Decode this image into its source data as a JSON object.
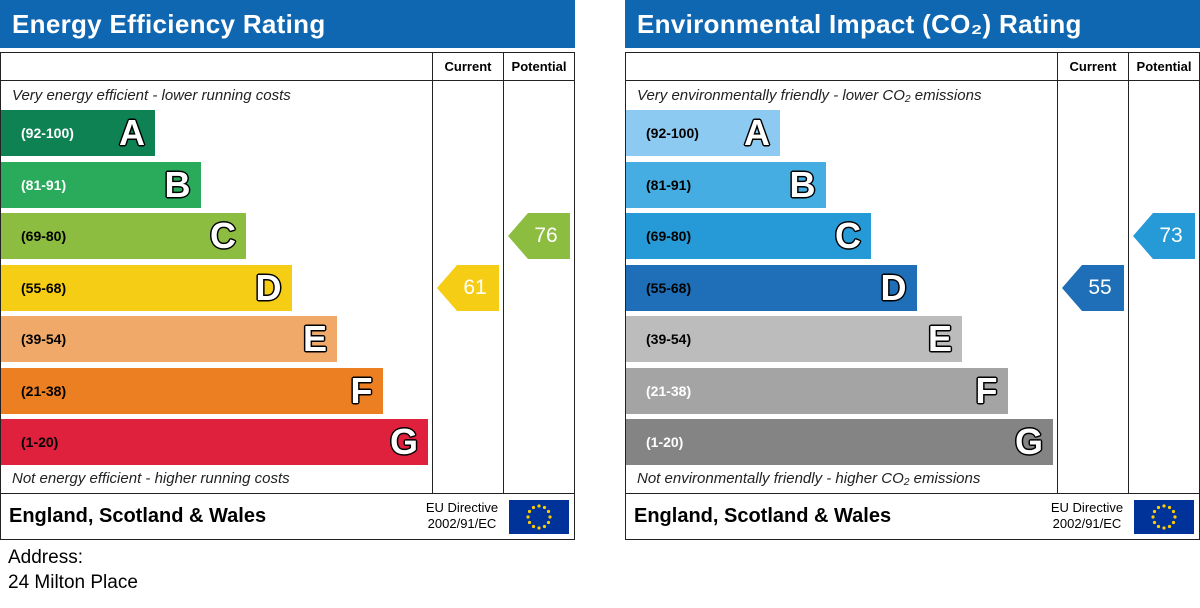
{
  "chart_data": [
    {
      "type": "bar",
      "title": "Energy Efficiency Rating",
      "columns": [
        "Current",
        "Potential"
      ],
      "top_note": "Very energy efficient - lower running costs",
      "bottom_note": "Not energy efficient - higher running costs",
      "bands": [
        {
          "letter": "A",
          "range": "(92-100)",
          "color": "#0e8253",
          "text_color": "#ffffff"
        },
        {
          "letter": "B",
          "range": "(81-91)",
          "color": "#2aab5c",
          "text_color": "#ffffff"
        },
        {
          "letter": "C",
          "range": "(69-80)",
          "color": "#8cbd40",
          "text_color": "#000000"
        },
        {
          "letter": "D",
          "range": "(55-68)",
          "color": "#f6cd15",
          "text_color": "#000000"
        },
        {
          "letter": "E",
          "range": "(39-54)",
          "color": "#f1a96a",
          "text_color": "#000000"
        },
        {
          "letter": "F",
          "range": "(21-38)",
          "color": "#ec7f22",
          "text_color": "#000000"
        },
        {
          "letter": "G",
          "range": "(1-20)",
          "color": "#e0213e",
          "text_color": "#000000"
        }
      ],
      "current": {
        "value": 61,
        "band": "D",
        "color": "#f6cd15"
      },
      "potential": {
        "value": 76,
        "band": "C",
        "color": "#8cbd40"
      },
      "footer": "England, Scotland & Wales",
      "directive": [
        "EU Directive",
        "2002/91/EC"
      ]
    },
    {
      "type": "bar",
      "title": "Environmental Impact (CO₂) Rating",
      "columns": [
        "Current",
        "Potential"
      ],
      "top_note": "Very environmentally friendly - lower CO₂ emissions",
      "bottom_note": "Not environmentally friendly - higher CO₂ emissions",
      "bands": [
        {
          "letter": "A",
          "range": "(92-100)",
          "color": "#8dcaf1",
          "text_color": "#000000"
        },
        {
          "letter": "B",
          "range": "(81-91)",
          "color": "#45ade2",
          "text_color": "#000000"
        },
        {
          "letter": "C",
          "range": "(69-80)",
          "color": "#269ad7",
          "text_color": "#000000"
        },
        {
          "letter": "D",
          "range": "(55-68)",
          "color": "#1e6fb7",
          "text_color": "#000000"
        },
        {
          "letter": "E",
          "range": "(39-54)",
          "color": "#bcbcbc",
          "text_color": "#000000"
        },
        {
          "letter": "F",
          "range": "(21-38)",
          "color": "#a4a4a4",
          "text_color": "#ffffff"
        },
        {
          "letter": "G",
          "range": "(1-20)",
          "color": "#848484",
          "text_color": "#ffffff"
        }
      ],
      "current": {
        "value": 55,
        "band": "D",
        "color": "#1e6fb7"
      },
      "potential": {
        "value": 73,
        "band": "C",
        "color": "#269ad7"
      },
      "footer": "England, Scotland & Wales",
      "directive": [
        "EU Directive",
        "2002/91/EC"
      ]
    }
  ],
  "address": {
    "label": "Address:",
    "value": "24 Milton Place"
  }
}
